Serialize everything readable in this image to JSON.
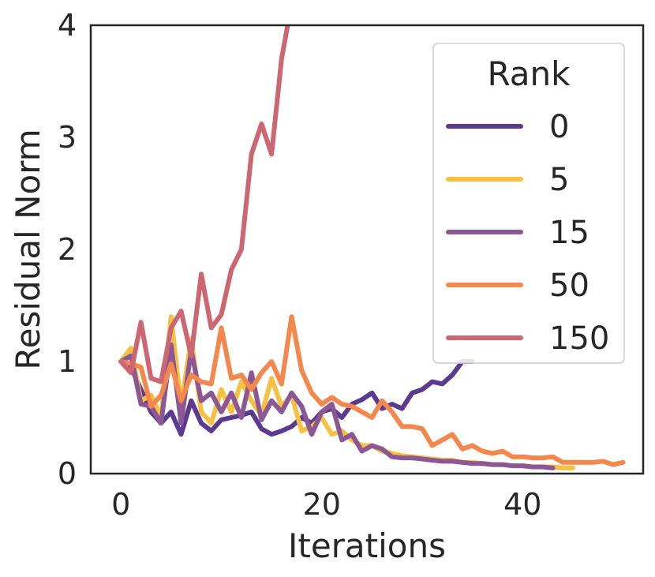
{
  "chart_data": {
    "type": "line",
    "xlabel": "Iterations",
    "ylabel": "Residual Norm",
    "xlim": [
      -3,
      52
    ],
    "ylim": [
      0,
      4
    ],
    "xticks": [
      0,
      20,
      40
    ],
    "yticks": [
      0,
      1,
      2,
      3,
      4
    ],
    "grid": false,
    "legend": {
      "title": "Rank",
      "placement": "top-right"
    },
    "series": [
      {
        "name": "0",
        "color": "#5b3a8f",
        "x": [
          0,
          1,
          2,
          3,
          4,
          5,
          6,
          7,
          8,
          9,
          10,
          11,
          12,
          13,
          14,
          15,
          16,
          17,
          18,
          19,
          20,
          21,
          22,
          23,
          24,
          25,
          26,
          27,
          28,
          29,
          30,
          31,
          32,
          33,
          34,
          35
        ],
        "y": [
          1.0,
          0.95,
          0.75,
          0.55,
          0.45,
          0.55,
          0.35,
          0.65,
          0.45,
          0.38,
          0.48,
          0.5,
          0.52,
          0.55,
          0.4,
          0.35,
          0.38,
          0.42,
          0.5,
          0.45,
          0.55,
          0.58,
          0.5,
          0.62,
          0.66,
          0.72,
          0.58,
          0.62,
          0.58,
          0.72,
          0.75,
          0.82,
          0.8,
          0.88,
          1.0,
          1.0
        ]
      },
      {
        "name": "5",
        "color": "#f6c142",
        "x": [
          0,
          1,
          2,
          3,
          4,
          5,
          6,
          7,
          8,
          9,
          10,
          11,
          12,
          13,
          14,
          15,
          16,
          17,
          18,
          19,
          20,
          21,
          22,
          23,
          24,
          25,
          26,
          27,
          28,
          29,
          30,
          31,
          32,
          33,
          34,
          35,
          36,
          37,
          38,
          39,
          40,
          41,
          42,
          43,
          44,
          45
        ],
        "y": [
          1.0,
          1.12,
          0.65,
          0.7,
          0.5,
          1.4,
          0.6,
          1.2,
          0.55,
          0.45,
          0.75,
          0.55,
          0.82,
          0.65,
          0.52,
          0.85,
          0.6,
          0.7,
          0.38,
          0.42,
          0.5,
          0.35,
          0.38,
          0.3,
          0.25,
          0.25,
          0.2,
          0.18,
          0.16,
          0.15,
          0.14,
          0.13,
          0.12,
          0.12,
          0.1,
          0.1,
          0.09,
          0.08,
          0.08,
          0.07,
          0.07,
          0.06,
          0.06,
          0.06,
          0.05,
          0.05
        ]
      },
      {
        "name": "15",
        "color": "#8b5795",
        "x": [
          0,
          1,
          2,
          3,
          4,
          5,
          6,
          7,
          8,
          9,
          10,
          11,
          12,
          13,
          14,
          15,
          16,
          17,
          18,
          19,
          20,
          21,
          22,
          23,
          24,
          25,
          26,
          27,
          28,
          29,
          30,
          31,
          32,
          33,
          34,
          35,
          36,
          37,
          38,
          39,
          40,
          41,
          42,
          43
        ],
        "y": [
          1.0,
          1.05,
          0.62,
          0.6,
          0.45,
          1.15,
          0.45,
          1.1,
          0.65,
          0.72,
          0.55,
          0.72,
          0.5,
          0.9,
          0.48,
          0.65,
          0.55,
          0.72,
          0.6,
          0.35,
          0.55,
          0.62,
          0.3,
          0.35,
          0.2,
          0.25,
          0.22,
          0.15,
          0.14,
          0.14,
          0.13,
          0.12,
          0.11,
          0.11,
          0.1,
          0.09,
          0.09,
          0.08,
          0.08,
          0.07,
          0.07,
          0.06,
          0.06,
          0.05
        ]
      },
      {
        "name": "50",
        "color": "#f4874b",
        "x": [
          0,
          1,
          2,
          3,
          4,
          5,
          6,
          7,
          8,
          9,
          10,
          11,
          12,
          13,
          14,
          15,
          16,
          17,
          18,
          19,
          20,
          21,
          22,
          23,
          24,
          25,
          26,
          27,
          28,
          29,
          30,
          31,
          32,
          33,
          34,
          35,
          36,
          37,
          38,
          39,
          40,
          41,
          42,
          43,
          44,
          45,
          46,
          47,
          48,
          49,
          50
        ],
        "y": [
          1.0,
          0.98,
          0.95,
          0.6,
          0.7,
          0.98,
          0.65,
          0.88,
          0.82,
          0.8,
          1.3,
          0.85,
          0.88,
          0.75,
          0.9,
          1.0,
          0.8,
          1.4,
          0.92,
          0.72,
          0.62,
          0.68,
          0.62,
          0.6,
          0.55,
          0.5,
          0.65,
          0.55,
          0.42,
          0.42,
          0.4,
          0.25,
          0.3,
          0.35,
          0.22,
          0.25,
          0.2,
          0.18,
          0.2,
          0.15,
          0.15,
          0.14,
          0.14,
          0.15,
          0.1,
          0.1,
          0.1,
          0.1,
          0.11,
          0.08,
          0.1
        ]
      },
      {
        "name": "150",
        "color": "#cc6670",
        "x": [
          0,
          1,
          2,
          3,
          4,
          5,
          6,
          7,
          8,
          9,
          10,
          11,
          12,
          13,
          14,
          15,
          16,
          16.6
        ],
        "y": [
          1.0,
          0.9,
          1.35,
          0.85,
          0.82,
          1.3,
          1.45,
          1.05,
          1.78,
          1.3,
          1.42,
          1.82,
          2.0,
          2.85,
          3.12,
          2.85,
          3.7,
          4.0
        ]
      }
    ]
  }
}
